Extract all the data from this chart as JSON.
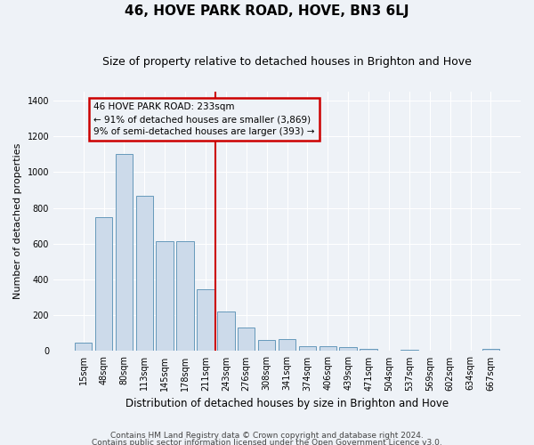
{
  "title": "46, HOVE PARK ROAD, HOVE, BN3 6LJ",
  "subtitle": "Size of property relative to detached houses in Brighton and Hove",
  "xlabel": "Distribution of detached houses by size in Brighton and Hove",
  "ylabel": "Number of detached properties",
  "footnote1": "Contains HM Land Registry data © Crown copyright and database right 2024.",
  "footnote2": "Contains public sector information licensed under the Open Government Licence v3.0.",
  "bar_labels": [
    "15sqm",
    "48sqm",
    "80sqm",
    "113sqm",
    "145sqm",
    "178sqm",
    "211sqm",
    "243sqm",
    "276sqm",
    "308sqm",
    "341sqm",
    "374sqm",
    "406sqm",
    "439sqm",
    "471sqm",
    "504sqm",
    "537sqm",
    "569sqm",
    "602sqm",
    "634sqm",
    "667sqm"
  ],
  "bar_values": [
    47,
    750,
    1100,
    870,
    615,
    615,
    345,
    220,
    130,
    60,
    65,
    25,
    25,
    20,
    13,
    0,
    8,
    0,
    0,
    0,
    10
  ],
  "bar_color": "#ccdaea",
  "bar_edge_color": "#6699bb",
  "property_label": "46 HOVE PARK ROAD: 233sqm",
  "annotation_line1": "← 91% of detached houses are smaller (3,869)",
  "annotation_line2": "9% of semi-detached houses are larger (393) →",
  "vline_x_index": 7,
  "vline_color": "#cc0000",
  "annotation_box_color": "#cc0000",
  "ylim": [
    0,
    1450
  ],
  "yticks": [
    0,
    200,
    400,
    600,
    800,
    1000,
    1200,
    1400
  ],
  "background_color": "#eef2f7",
  "grid_color": "#ffffff",
  "title_fontsize": 11,
  "subtitle_fontsize": 9,
  "ylabel_fontsize": 8,
  "xlabel_fontsize": 8.5,
  "tick_fontsize": 7,
  "annotation_fontsize": 7.5,
  "footnote_fontsize": 6.5
}
